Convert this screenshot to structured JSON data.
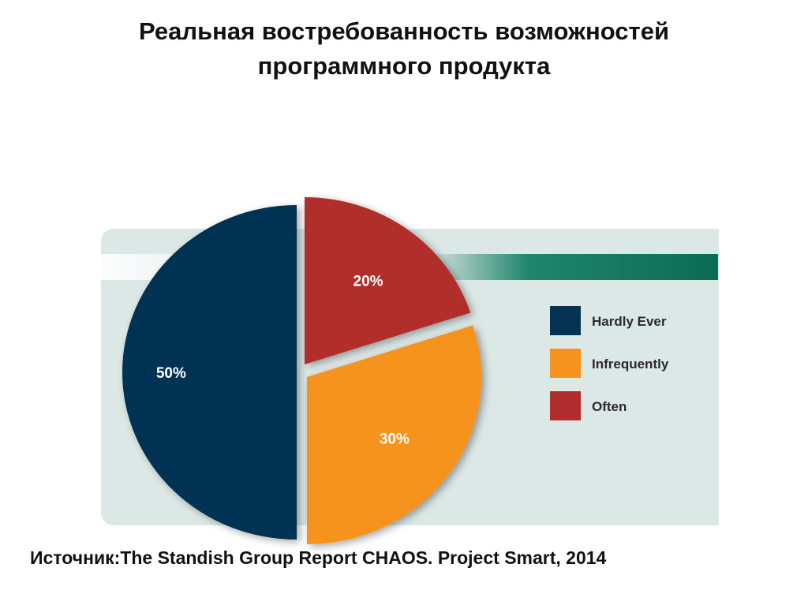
{
  "title_line1": "Реальная востребованность возможностей",
  "title_line2": "программного продукта",
  "source": "Источник:The Standish Group Report CHAOS. Project Smart, 2014",
  "chart_data": {
    "type": "pie",
    "slices": [
      {
        "label": "Hardly Ever",
        "value": 50,
        "data_label": "50%",
        "color": "#043253"
      },
      {
        "label": "Often",
        "value": 20,
        "data_label": "20%",
        "color": "#b22e2c"
      },
      {
        "label": "Infrequently",
        "value": 30,
        "data_label": "30%",
        "color": "#f5931e"
      }
    ],
    "legend": {
      "placement": "right",
      "entries": [
        {
          "label": "Hardly Ever",
          "color": "#043253"
        },
        {
          "label": "Infrequently",
          "color": "#f5931e"
        },
        {
          "label": "Often",
          "color": "#b22e2c"
        }
      ]
    },
    "background_color": "#dce8e6",
    "accent_bar_color": "#0b7a5d"
  }
}
